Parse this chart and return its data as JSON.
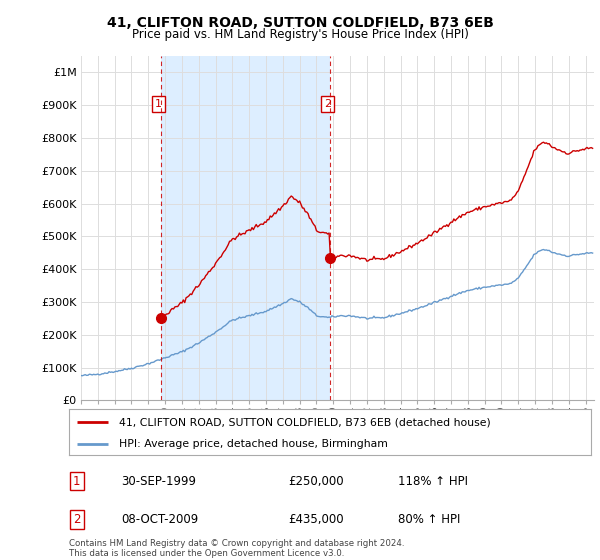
{
  "title": "41, CLIFTON ROAD, SUTTON COLDFIELD, B73 6EB",
  "subtitle": "Price paid vs. HM Land Registry's House Price Index (HPI)",
  "legend_line1": "41, CLIFTON ROAD, SUTTON COLDFIELD, B73 6EB (detached house)",
  "legend_line2": "HPI: Average price, detached house, Birmingham",
  "annotation1_date": "30-SEP-1999",
  "annotation1_price": "£250,000",
  "annotation1_hpi": "118% ↑ HPI",
  "annotation2_date": "08-OCT-2009",
  "annotation2_price": "£435,000",
  "annotation2_hpi": "80% ↑ HPI",
  "footer": "Contains HM Land Registry data © Crown copyright and database right 2024.\nThis data is licensed under the Open Government Licence v3.0.",
  "y_ticks": [
    0,
    100000,
    200000,
    300000,
    400000,
    500000,
    600000,
    700000,
    800000,
    900000,
    1000000
  ],
  "y_tick_labels": [
    "£0",
    "£100K",
    "£200K",
    "£300K",
    "£400K",
    "£500K",
    "£600K",
    "£700K",
    "£800K",
    "£900K",
    "£1M"
  ],
  "xlim": [
    1995.0,
    2025.5
  ],
  "ylim": [
    0,
    1050000
  ],
  "property_color": "#cc0000",
  "hpi_color": "#6699cc",
  "vline_color": "#cc0000",
  "shade_color": "#ddeeff",
  "grid_color": "#dddddd",
  "background_color": "#ffffff",
  "sale1_x": 1999.75,
  "sale1_y": 250000,
  "sale2_x": 2009.79,
  "sale2_y": 435000
}
